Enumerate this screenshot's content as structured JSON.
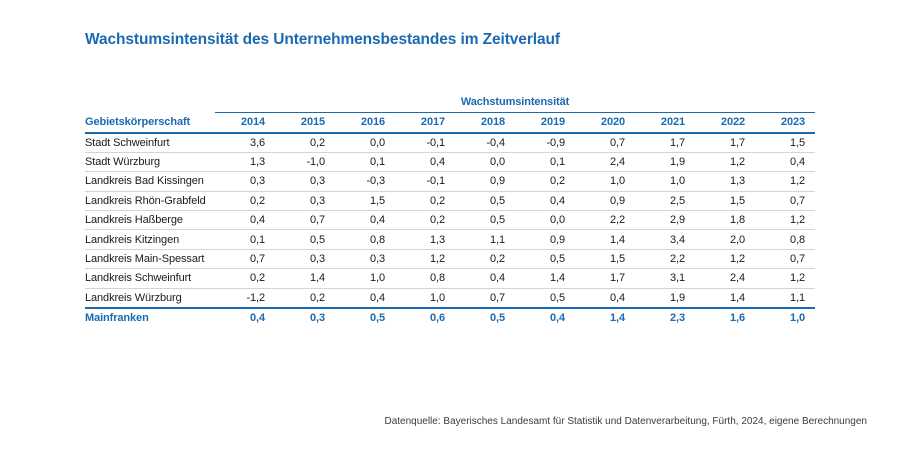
{
  "title": "Wachstumsintensität des Unternehmensbestandes im Zeitverlauf",
  "colors": {
    "accent": "#1b6ab1",
    "grid_line": "#d4d4d4",
    "body_text": "#1a1a1a"
  },
  "table": {
    "group_header": "Wachstumsintensität",
    "col0_header": "Gebietskörperschaft",
    "years": [
      "2014",
      "2015",
      "2016",
      "2017",
      "2018",
      "2019",
      "2020",
      "2021",
      "2022",
      "2023"
    ],
    "rows": [
      {
        "label": "Stadt Schweinfurt",
        "values": [
          "3,6",
          "0,2",
          "0,0",
          "-0,1",
          "-0,4",
          "-0,9",
          "0,7",
          "1,7",
          "1,7",
          "1,5"
        ]
      },
      {
        "label": "Stadt Würzburg",
        "values": [
          "1,3",
          "-1,0",
          "0,1",
          "0,4",
          "0,0",
          "0,1",
          "2,4",
          "1,9",
          "1,2",
          "0,4"
        ]
      },
      {
        "label": "Landkreis Bad Kissingen",
        "values": [
          "0,3",
          "0,3",
          "-0,3",
          "-0,1",
          "0,9",
          "0,2",
          "1,0",
          "1,0",
          "1,3",
          "1,2"
        ]
      },
      {
        "label": "Landkreis Rhön-Grabfeld",
        "values": [
          "0,2",
          "0,3",
          "1,5",
          "0,2",
          "0,5",
          "0,4",
          "0,9",
          "2,5",
          "1,5",
          "0,7"
        ]
      },
      {
        "label": "Landkreis Haßberge",
        "values": [
          "0,4",
          "0,7",
          "0,4",
          "0,2",
          "0,5",
          "0,0",
          "2,2",
          "2,9",
          "1,8",
          "1,2"
        ]
      },
      {
        "label": "Landkreis Kitzingen",
        "values": [
          "0,1",
          "0,5",
          "0,8",
          "1,3",
          "1,1",
          "0,9",
          "1,4",
          "3,4",
          "2,0",
          "0,8"
        ]
      },
      {
        "label": "Landkreis Main-Spessart",
        "values": [
          "0,7",
          "0,3",
          "0,3",
          "1,2",
          "0,2",
          "0,5",
          "1,5",
          "2,2",
          "1,2",
          "0,7"
        ]
      },
      {
        "label": "Landkreis Schweinfurt",
        "values": [
          "0,2",
          "1,4",
          "1,0",
          "0,8",
          "0,4",
          "1,4",
          "1,7",
          "3,1",
          "2,4",
          "1,2"
        ]
      },
      {
        "label": "Landkreis Würzburg",
        "values": [
          "-1,2",
          "0,2",
          "0,4",
          "1,0",
          "0,7",
          "0,5",
          "0,4",
          "1,9",
          "1,4",
          "1,1"
        ]
      }
    ],
    "total_row": {
      "label": "Mainfranken",
      "values": [
        "0,4",
        "0,3",
        "0,5",
        "0,6",
        "0,5",
        "0,4",
        "1,4",
        "2,3",
        "1,6",
        "1,0"
      ]
    }
  },
  "footer": {
    "source": "Datenquelle: Bayerisches Landesamt für Statistik und Datenverarbeitung, Fürth, 2024, eigene Berechnungen"
  }
}
